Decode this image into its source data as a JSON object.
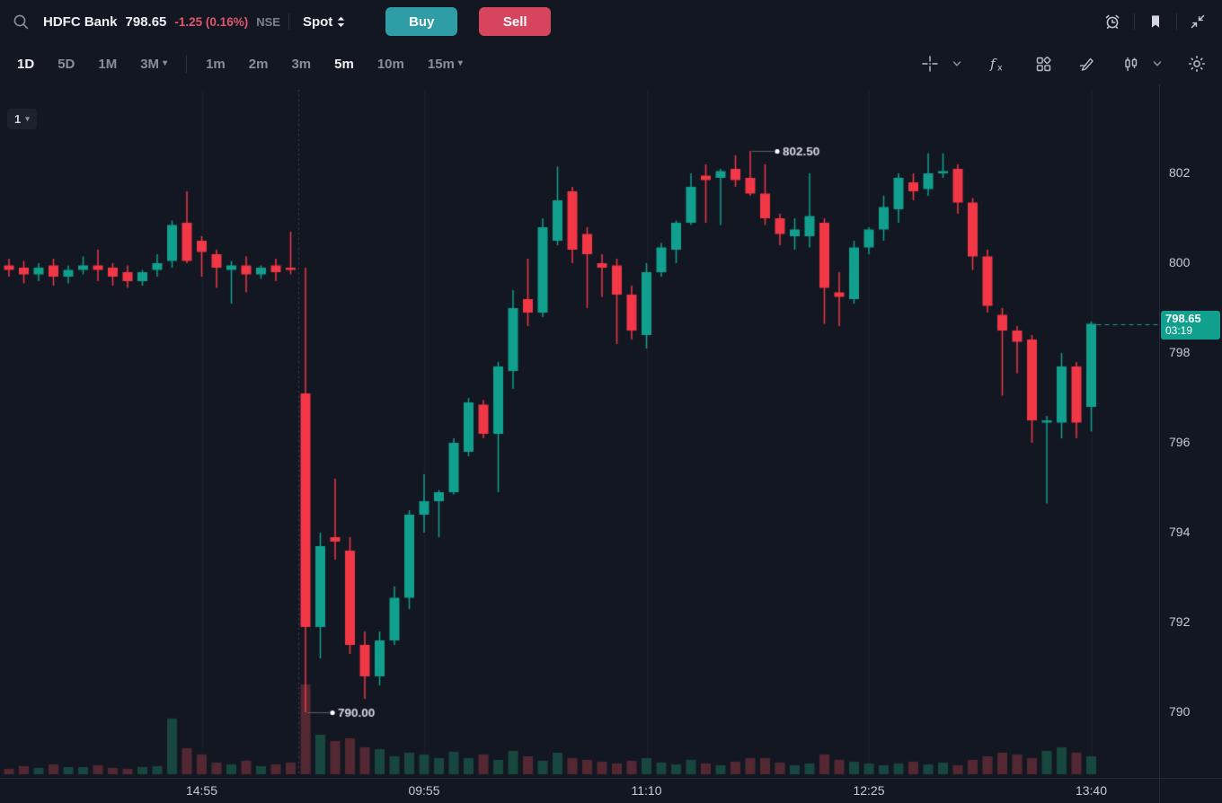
{
  "header": {
    "symbol": "HDFC Bank",
    "price": "798.65",
    "change": "-1.25 (0.16%)",
    "exchange": "NSE",
    "instrument_selector": "Spot",
    "buy_label": "Buy",
    "sell_label": "Sell",
    "right_icons": [
      "alarm-icon",
      "bookmark-icon",
      "collapse-icon"
    ]
  },
  "toolbar": {
    "ranges": [
      {
        "label": "1D",
        "active": true
      },
      {
        "label": "5D",
        "active": false
      },
      {
        "label": "1M",
        "active": false
      },
      {
        "label": "3M",
        "active": false,
        "dropdown": true
      }
    ],
    "intervals": [
      {
        "label": "1m",
        "active": false
      },
      {
        "label": "2m",
        "active": false
      },
      {
        "label": "3m",
        "active": false
      },
      {
        "label": "5m",
        "active": true
      },
      {
        "label": "10m",
        "active": false
      },
      {
        "label": "15m",
        "active": false,
        "dropdown": true
      }
    ],
    "right_icons": [
      "crosshair-icon",
      "chevron-down-icon",
      "fx-indicators-icon",
      "layout-grid-icon",
      "draw-icon",
      "candle-style-icon",
      "chevron-down-icon",
      "settings-gear-icon"
    ]
  },
  "chart": {
    "series_selector": "1",
    "y_ticks": [
      802,
      800,
      798,
      796,
      794,
      792,
      790
    ],
    "price_badge": {
      "price": "798.65",
      "time": "03:19"
    }
  },
  "colors": {
    "background": "#131722",
    "up": "#10a08d",
    "down": "#f23747",
    "vol_up": "#17473f",
    "vol_down": "#532832",
    "badge": "#10a08d",
    "buy_button": "#2e9da6",
    "sell_button": "#d6455d",
    "change_negative": "#e2566e",
    "axis_text": "#c6cad2",
    "marker_text": "#d4d7dd"
  },
  "chart_data": {
    "type": "candlestick",
    "symbol": "HDFC Bank",
    "interval": "5m",
    "ylim": [
      788.5,
      803.9
    ],
    "grid": "faint-vertical-at-ticks",
    "columns": [
      "time",
      "open",
      "high",
      "low",
      "close",
      "volume_rel"
    ],
    "session_break_after_index": 19,
    "x_tick_indices": [
      13,
      28,
      43,
      58,
      73
    ],
    "x_tick_labels": [
      "14:55",
      "09:55",
      "11:10",
      "12:25",
      "13:40"
    ],
    "high_marker": {
      "index": 50,
      "price": 802.5,
      "label": "802.50"
    },
    "low_marker": {
      "index": 20,
      "price": 790.0,
      "label": "790.00"
    },
    "last_price": 798.65,
    "candles": [
      [
        "13:50",
        799.95,
        800.1,
        799.7,
        799.85,
        6
      ],
      [
        "13:55",
        799.9,
        800.05,
        799.55,
        799.75,
        9
      ],
      [
        "14:00",
        799.75,
        800.0,
        799.6,
        799.9,
        7
      ],
      [
        "14:05",
        799.95,
        800.1,
        799.5,
        799.7,
        11
      ],
      [
        "14:10",
        799.7,
        799.95,
        799.55,
        799.85,
        8
      ],
      [
        "14:15",
        799.85,
        800.15,
        799.75,
        799.95,
        8
      ],
      [
        "14:20",
        799.95,
        800.3,
        799.6,
        799.85,
        10
      ],
      [
        "14:25",
        799.9,
        800.0,
        799.5,
        799.7,
        7
      ],
      [
        "14:30",
        799.8,
        799.95,
        799.45,
        799.6,
        6
      ],
      [
        "14:35",
        799.6,
        799.85,
        799.5,
        799.8,
        8
      ],
      [
        "14:40",
        799.85,
        800.2,
        799.7,
        800.0,
        9
      ],
      [
        "14:45",
        800.05,
        800.95,
        799.9,
        800.85,
        62
      ],
      [
        "14:50",
        800.9,
        801.6,
        800.0,
        800.05,
        29
      ],
      [
        "14:55",
        800.5,
        800.6,
        799.7,
        800.25,
        22
      ],
      [
        "15:00",
        800.2,
        800.3,
        799.45,
        799.9,
        13
      ],
      [
        "15:05",
        799.85,
        800.05,
        799.1,
        799.95,
        11
      ],
      [
        "15:10",
        799.95,
        800.15,
        799.35,
        799.75,
        15
      ],
      [
        "15:15",
        799.75,
        799.95,
        799.65,
        799.9,
        9
      ],
      [
        "15:20",
        799.95,
        800.1,
        799.6,
        799.8,
        11
      ],
      [
        "15:25",
        799.9,
        800.7,
        799.75,
        799.85,
        13
      ],
      [
        "09:15",
        797.1,
        799.9,
        790.0,
        791.9,
        100
      ],
      [
        "09:20",
        791.9,
        794.0,
        791.2,
        793.7,
        44
      ],
      [
        "09:25",
        793.9,
        795.2,
        793.4,
        793.8,
        37
      ],
      [
        "09:30",
        793.6,
        793.9,
        791.3,
        791.5,
        40
      ],
      [
        "09:35",
        791.5,
        791.8,
        790.3,
        790.8,
        30
      ],
      [
        "09:40",
        790.8,
        791.8,
        790.6,
        791.6,
        28
      ],
      [
        "09:45",
        791.6,
        792.8,
        791.5,
        792.55,
        20
      ],
      [
        "09:50",
        792.55,
        794.5,
        792.3,
        794.4,
        24
      ],
      [
        "09:55",
        794.4,
        795.3,
        794.0,
        794.7,
        22
      ],
      [
        "10:00",
        794.7,
        794.95,
        793.9,
        794.9,
        18
      ],
      [
        "10:05",
        794.9,
        796.1,
        794.85,
        796.0,
        25
      ],
      [
        "10:10",
        795.8,
        797.0,
        795.7,
        796.9,
        18
      ],
      [
        "10:15",
        796.85,
        796.95,
        796.1,
        796.2,
        22
      ],
      [
        "10:20",
        796.2,
        797.8,
        794.9,
        797.7,
        16
      ],
      [
        "10:25",
        797.6,
        799.4,
        797.2,
        799.0,
        26
      ],
      [
        "10:30",
        799.2,
        800.1,
        798.6,
        798.9,
        20
      ],
      [
        "10:35",
        798.9,
        801.0,
        798.8,
        800.8,
        15
      ],
      [
        "10:40",
        800.5,
        802.15,
        800.4,
        801.4,
        24
      ],
      [
        "10:45",
        801.6,
        801.7,
        800.0,
        800.3,
        18
      ],
      [
        "10:50",
        800.65,
        800.8,
        799.0,
        800.2,
        16
      ],
      [
        "10:55",
        800.0,
        800.2,
        799.25,
        799.9,
        14
      ],
      [
        "11:00",
        799.95,
        800.1,
        798.2,
        799.3,
        12
      ],
      [
        "11:05",
        799.3,
        799.5,
        798.3,
        798.5,
        15
      ],
      [
        "11:10",
        798.4,
        800.0,
        798.1,
        799.8,
        18
      ],
      [
        "11:15",
        799.8,
        800.45,
        799.7,
        800.35,
        13
      ],
      [
        "11:20",
        800.3,
        800.95,
        800.0,
        800.9,
        11
      ],
      [
        "11:25",
        800.9,
        802.0,
        800.85,
        801.7,
        16
      ],
      [
        "11:30",
        801.95,
        802.2,
        800.9,
        801.85,
        12
      ],
      [
        "11:35",
        801.9,
        802.1,
        800.85,
        802.05,
        10
      ],
      [
        "11:40",
        802.1,
        802.4,
        801.7,
        801.85,
        14
      ],
      [
        "11:45",
        801.9,
        802.5,
        801.5,
        801.55,
        18
      ],
      [
        "11:50",
        801.55,
        802.2,
        800.85,
        801.0,
        18
      ],
      [
        "11:55",
        801.0,
        801.1,
        800.4,
        800.65,
        13
      ],
      [
        "12:00",
        800.6,
        801.0,
        800.3,
        800.75,
        10
      ],
      [
        "12:05",
        800.6,
        802.0,
        800.35,
        801.05,
        12
      ],
      [
        "12:10",
        800.9,
        801.0,
        798.65,
        799.45,
        22
      ],
      [
        "12:15",
        799.35,
        799.8,
        798.6,
        799.25,
        16
      ],
      [
        "12:20",
        799.2,
        800.5,
        799.1,
        800.35,
        14
      ],
      [
        "12:25",
        800.35,
        800.8,
        800.2,
        800.75,
        12
      ],
      [
        "12:30",
        800.75,
        801.5,
        800.5,
        801.25,
        10
      ],
      [
        "12:35",
        801.2,
        802.0,
        800.9,
        801.9,
        12
      ],
      [
        "12:40",
        801.8,
        802.0,
        801.4,
        801.6,
        14
      ],
      [
        "12:45",
        801.65,
        802.45,
        801.5,
        802.0,
        11
      ],
      [
        "12:50",
        802.0,
        802.45,
        801.9,
        802.05,
        13
      ],
      [
        "12:55",
        802.1,
        802.2,
        801.1,
        801.35,
        10
      ],
      [
        "13:00",
        801.35,
        801.45,
        799.85,
        800.15,
        16
      ],
      [
        "13:05",
        800.15,
        800.3,
        798.9,
        799.05,
        20
      ],
      [
        "13:10",
        798.85,
        799.0,
        797.05,
        798.5,
        24
      ],
      [
        "13:15",
        798.5,
        798.6,
        797.55,
        798.25,
        22
      ],
      [
        "13:20",
        798.3,
        798.4,
        796.0,
        796.5,
        18
      ],
      [
        "13:25",
        796.45,
        796.6,
        794.65,
        796.5,
        26
      ],
      [
        "13:30",
        796.45,
        798.0,
        796.1,
        797.7,
        30
      ],
      [
        "13:35",
        797.7,
        797.8,
        796.1,
        796.45,
        24
      ],
      [
        "13:40",
        796.8,
        798.7,
        796.25,
        798.65,
        20
      ]
    ]
  }
}
